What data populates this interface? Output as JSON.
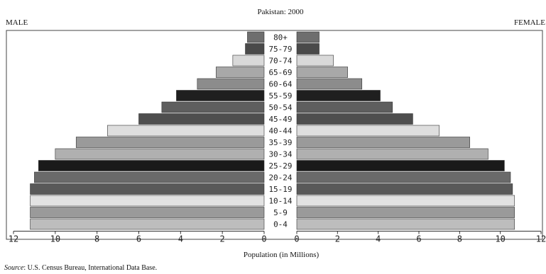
{
  "chart_data": {
    "type": "bar",
    "title": "Pakistan: 2000",
    "left_label": "MALE",
    "right_label": "FEMALE",
    "xlabel": "Population (in Millions)",
    "source_prefix": "Source",
    "source_text": ": U.S. Census Bureau, International Data Base.",
    "xlim": [
      0,
      12
    ],
    "tick_labels": [
      "12",
      "10",
      "8",
      "6",
      "4",
      "2",
      "0"
    ],
    "categories": [
      "80+",
      "75-79",
      "70-74",
      "65-69",
      "60-64",
      "55-59",
      "50-54",
      "45-49",
      "40-44",
      "35-39",
      "30-34",
      "25-29",
      "20-24",
      "15-19",
      "10-14",
      "5-9",
      "0-4"
    ],
    "series": [
      {
        "name": "MALE",
        "values": [
          0.8,
          0.9,
          1.5,
          2.3,
          3.2,
          4.2,
          4.9,
          6.0,
          7.5,
          9.0,
          10.0,
          10.8,
          11.0,
          11.2,
          11.2,
          11.2,
          11.2
        ]
      },
      {
        "name": "FEMALE",
        "values": [
          1.1,
          1.1,
          1.8,
          2.5,
          3.2,
          4.1,
          4.7,
          5.7,
          7.0,
          8.5,
          9.4,
          10.2,
          10.5,
          10.6,
          10.7,
          10.7,
          10.7
        ]
      }
    ],
    "bar_colors": [
      "#6e6e6e",
      "#4a4a4a",
      "#d9d9d9",
      "#a8a8a8",
      "#8c8c8c",
      "#1f1f1f",
      "#5e5e5e",
      "#4e4e4e",
      "#dedede",
      "#9a9a9a",
      "#b0b0b0",
      "#1a1a1a",
      "#6a6a6a",
      "#595959",
      "#e2e2e2",
      "#9a9a9a",
      "#bdbdbd"
    ],
    "grid": false,
    "legend": "none"
  }
}
